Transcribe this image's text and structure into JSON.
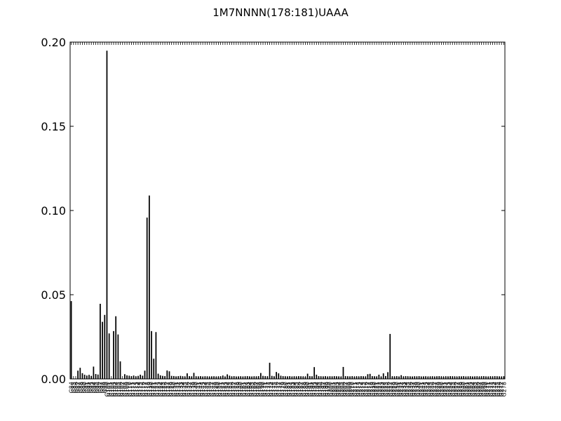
{
  "chart_data": {
    "type": "bar",
    "title": "1M7NNNN(178:181)UAAA",
    "xlabel": "",
    "ylabel": "",
    "ylim": [
      0,
      0.2
    ],
    "yticks": [
      "0.00",
      "0.05",
      "0.10",
      "0.15",
      "0.20"
    ],
    "ytick_values": [
      0,
      0.05,
      0.1,
      0.15,
      0.2
    ],
    "x_start": 84,
    "x_end": 288,
    "grid": false,
    "legend": "none",
    "bar_color": "#000000",
    "values": [
      0.0462,
      0.0,
      0.0,
      0.0049,
      0.0066,
      0.0034,
      0.0025,
      0.002,
      0.0024,
      0.0018,
      0.0073,
      0.0029,
      0.0026,
      0.0446,
      0.0339,
      0.038,
      0.1949,
      0.027,
      0.0,
      0.0284,
      0.0372,
      0.0264,
      0.0104,
      0.0,
      0.0028,
      0.0021,
      0.0019,
      0.0016,
      0.002,
      0.0015,
      0.0018,
      0.0025,
      0.0019,
      0.0049,
      0.0958,
      0.1089,
      0.0284,
      0.012,
      0.0278,
      0.0031,
      0.0021,
      0.0018,
      0.0016,
      0.005,
      0.0045,
      0.0018,
      0.0017,
      0.0014,
      0.0016,
      0.0018,
      0.0015,
      0.0014,
      0.0033,
      0.0016,
      0.0014,
      0.0036,
      0.0015,
      0.0014,
      0.0016,
      0.0013,
      0.0015,
      0.0014,
      0.0013,
      0.0014,
      0.0015,
      0.0013,
      0.0014,
      0.0015,
      0.002,
      0.0013,
      0.0027,
      0.0019,
      0.0014,
      0.0016,
      0.0013,
      0.0014,
      0.0015,
      0.0013,
      0.0015,
      0.0016,
      0.0014,
      0.0013,
      0.0015,
      0.0014,
      0.0016,
      0.0035,
      0.0018,
      0.0016,
      0.0015,
      0.0096,
      0.0018,
      0.0015,
      0.0041,
      0.0033,
      0.0019,
      0.0016,
      0.0015,
      0.0014,
      0.0016,
      0.0013,
      0.0015,
      0.0014,
      0.0016,
      0.0015,
      0.0014,
      0.0013,
      0.0031,
      0.0016,
      0.0015,
      0.007,
      0.0025,
      0.0016,
      0.0015,
      0.0014,
      0.0016,
      0.0013,
      0.0015,
      0.0014,
      0.0016,
      0.0015,
      0.0014,
      0.0013,
      0.0071,
      0.0016,
      0.0015,
      0.0014,
      0.0016,
      0.0013,
      0.0015,
      0.0014,
      0.0016,
      0.0015,
      0.0014,
      0.0028,
      0.003,
      0.0016,
      0.0015,
      0.0014,
      0.0025,
      0.0013,
      0.0033,
      0.0017,
      0.004,
      0.0267,
      0.0015,
      0.0014,
      0.0016,
      0.0013,
      0.0022,
      0.0014,
      0.0016,
      0.0015,
      0.0014,
      0.0013,
      0.0015,
      0.0014,
      0.0016,
      0.0013,
      0.0014,
      0.0015,
      0.0013,
      0.0014,
      0.0015,
      0.0013,
      0.0015,
      0.0016,
      0.0014,
      0.0013,
      0.0015,
      0.0014,
      0.0016,
      0.0015,
      0.0014,
      0.0013,
      0.0015,
      0.0014,
      0.0016,
      0.0013,
      0.0014,
      0.0015,
      0.0013,
      0.0014,
      0.0015,
      0.0013,
      0.0015,
      0.0016,
      0.0014,
      0.0013,
      0.0015,
      0.0014,
      0.0016,
      0.0015,
      0.0014,
      0.0013,
      0.0015
    ]
  }
}
